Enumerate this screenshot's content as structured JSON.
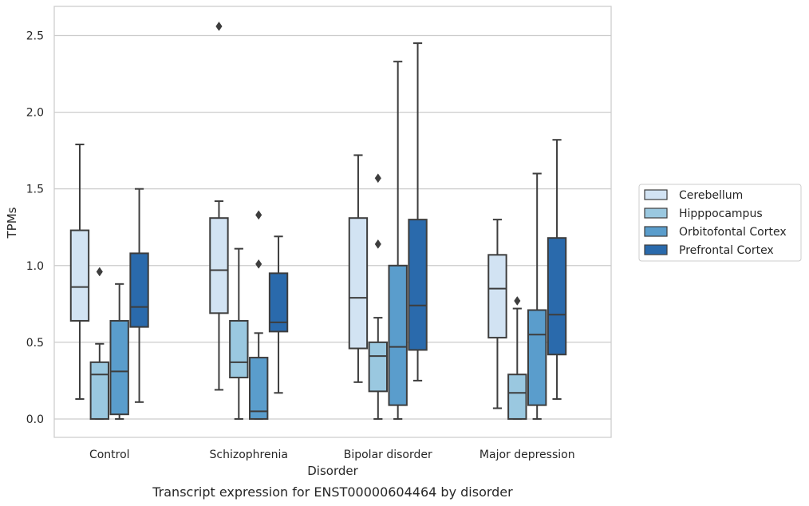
{
  "chart_data": {
    "type": "box",
    "title": "",
    "caption": "Transcript expression for ENST00000604464 by disorder",
    "xlabel": "Disorder",
    "ylabel": "TPMs",
    "ylim": [
      -0.12,
      2.69
    ],
    "yticks": [
      0.0,
      0.5,
      1.0,
      1.5,
      2.0,
      2.5
    ],
    "ytick_labels": [
      "0.0",
      "0.5",
      "1.0",
      "1.5",
      "2.0",
      "2.5"
    ],
    "grid": "horizontal",
    "legend_position": "right",
    "categories": [
      "Control",
      "Schizophrenia",
      "Bipolar disorder",
      "Major depression"
    ],
    "series": [
      {
        "name": "Cerebellum",
        "color": "#d2e3f3",
        "boxes": [
          {
            "whisker_low": 0.13,
            "q1": 0.64,
            "median": 0.86,
            "q3": 1.23,
            "whisker_high": 1.79,
            "outliers": []
          },
          {
            "whisker_low": 0.19,
            "q1": 0.69,
            "median": 0.97,
            "q3": 1.31,
            "whisker_high": 1.42,
            "outliers": [
              2.56
            ]
          },
          {
            "whisker_low": 0.24,
            "q1": 0.46,
            "median": 0.79,
            "q3": 1.31,
            "whisker_high": 1.72,
            "outliers": []
          },
          {
            "whisker_low": 0.07,
            "q1": 0.53,
            "median": 0.85,
            "q3": 1.07,
            "whisker_high": 1.3,
            "outliers": []
          }
        ]
      },
      {
        "name": "Hipppocampus",
        "color": "#9ac8e0",
        "boxes": [
          {
            "whisker_low": 0.0,
            "q1": 0.0,
            "median": 0.29,
            "q3": 0.37,
            "whisker_high": 0.49,
            "outliers": [
              0.96
            ]
          },
          {
            "whisker_low": 0.0,
            "q1": 0.27,
            "median": 0.37,
            "q3": 0.64,
            "whisker_high": 1.11,
            "outliers": []
          },
          {
            "whisker_low": 0.0,
            "q1": 0.18,
            "median": 0.41,
            "q3": 0.5,
            "whisker_high": 0.66,
            "outliers": [
              1.14,
              1.57
            ]
          },
          {
            "whisker_low": 0.0,
            "q1": 0.0,
            "median": 0.17,
            "q3": 0.29,
            "whisker_high": 0.72,
            "outliers": [
              0.77
            ]
          }
        ]
      },
      {
        "name": "Orbitofontal Cortex",
        "color": "#5a9dcc",
        "boxes": [
          {
            "whisker_low": 0.0,
            "q1": 0.03,
            "median": 0.31,
            "q3": 0.64,
            "whisker_high": 0.88,
            "outliers": []
          },
          {
            "whisker_low": 0.0,
            "q1": 0.0,
            "median": 0.05,
            "q3": 0.4,
            "whisker_high": 0.56,
            "outliers": [
              1.01,
              1.33
            ]
          },
          {
            "whisker_low": 0.0,
            "q1": 0.09,
            "median": 0.47,
            "q3": 1.0,
            "whisker_high": 2.33,
            "outliers": []
          },
          {
            "whisker_low": 0.0,
            "q1": 0.09,
            "median": 0.55,
            "q3": 0.71,
            "whisker_high": 1.6,
            "outliers": []
          }
        ]
      },
      {
        "name": "Prefrontal Cortex",
        "color": "#2a6aac",
        "boxes": [
          {
            "whisker_low": 0.11,
            "q1": 0.6,
            "median": 0.73,
            "q3": 1.08,
            "whisker_high": 1.5,
            "outliers": []
          },
          {
            "whisker_low": 0.17,
            "q1": 0.57,
            "median": 0.63,
            "q3": 0.95,
            "whisker_high": 1.19,
            "outliers": []
          },
          {
            "whisker_low": 0.25,
            "q1": 0.45,
            "median": 0.74,
            "q3": 1.3,
            "whisker_high": 2.45,
            "outliers": []
          },
          {
            "whisker_low": 0.13,
            "q1": 0.42,
            "median": 0.68,
            "q3": 1.18,
            "whisker_high": 1.82,
            "outliers": []
          }
        ]
      }
    ]
  }
}
